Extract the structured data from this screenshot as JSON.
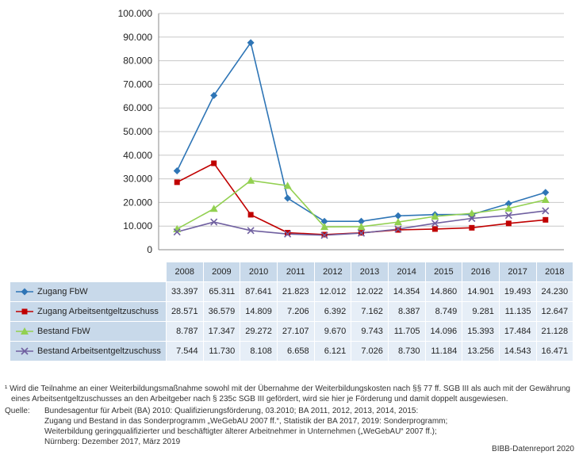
{
  "chart_data": {
    "type": "line",
    "x": [
      "2008",
      "2009",
      "2010",
      "2011",
      "2012",
      "2013",
      "2014",
      "2015",
      "2016",
      "2017",
      "2018"
    ],
    "ylim": [
      0,
      100000
    ],
    "yticks": [
      "0",
      "10.000",
      "20.000",
      "30.000",
      "40.000",
      "50.000",
      "60.000",
      "70.000",
      "80.000",
      "90.000",
      "100.000"
    ],
    "grid": true,
    "series": [
      {
        "name": "Zugang FbW",
        "color": "#2e75b6",
        "marker": "diamond",
        "values": [
          33397,
          65311,
          87641,
          21823,
          12012,
          12022,
          14354,
          14860,
          14901,
          19493,
          24230
        ],
        "labels": [
          "33.397",
          "65.311",
          "87.641",
          "21.823",
          "12.012",
          "12.022",
          "14.354",
          "14.860",
          "14.901",
          "19.493",
          "24.230"
        ]
      },
      {
        "name": "Zugang Arbeitsentgeltzuschuss",
        "color": "#c00000",
        "marker": "square",
        "values": [
          28571,
          36579,
          14809,
          7206,
          6392,
          7162,
          8387,
          8749,
          9281,
          11135,
          12647
        ],
        "labels": [
          "28.571",
          "36.579",
          "14.809",
          "7.206",
          "6.392",
          "7.162",
          "8.387",
          "8.749",
          "9.281",
          "11.135",
          "12.647"
        ]
      },
      {
        "name": "Bestand FbW",
        "color": "#92d050",
        "marker": "triangle",
        "values": [
          8787,
          17347,
          29272,
          27107,
          9670,
          9743,
          11705,
          14096,
          15393,
          17484,
          21128
        ],
        "labels": [
          "8.787",
          "17.347",
          "29.272",
          "27.107",
          "9.670",
          "9.743",
          "11.705",
          "14.096",
          "15.393",
          "17.484",
          "21.128"
        ]
      },
      {
        "name": "Bestand Arbeitsentgeltzuschuss",
        "color": "#7060a0",
        "marker": "x",
        "values": [
          7544,
          11730,
          8108,
          6658,
          6121,
          7026,
          8730,
          11184,
          13256,
          14543,
          16471
        ],
        "labels": [
          "7.544",
          "11.730",
          "8.108",
          "6.658",
          "6.121",
          "7.026",
          "8.730",
          "11.184",
          "13.256",
          "14.543",
          "16.471"
        ]
      }
    ]
  },
  "footnote": "¹ Wird die Teilnahme an einer Weiterbildungsmaßnahme sowohl mit der Übernahme der Weiterbildungskosten nach §§ 77 ff. SGB III als auch mit der Gewährung eines Arbeitsentgeltzuschusses an den Arbeitgeber nach § 235c SGB III gefördert, wird sie hier je Förderung und damit doppelt ausgewiesen.",
  "source_label": "Quelle:",
  "source_lines": [
    "Bundesagentur für Arbeit (BA) 2010: Qualifizierungsförderung, 03.2010; BA 2011, 2012, 2013, 2014, 2015:",
    "Zugang und Bestand in das Sonderprogramm „WeGebAU 2007 ff.“, Statistik der BA 2017, 2019: Sonderprogramm;",
    "Weiterbildung geringqualifizierter und beschäftigter älterer Arbeitnehmer in Unternehmen („WeGebAU“ 2007 ff.);",
    "Nürnberg: Dezember 2017, März 2019"
  ],
  "credit": "BIBB-Datenreport 2020"
}
